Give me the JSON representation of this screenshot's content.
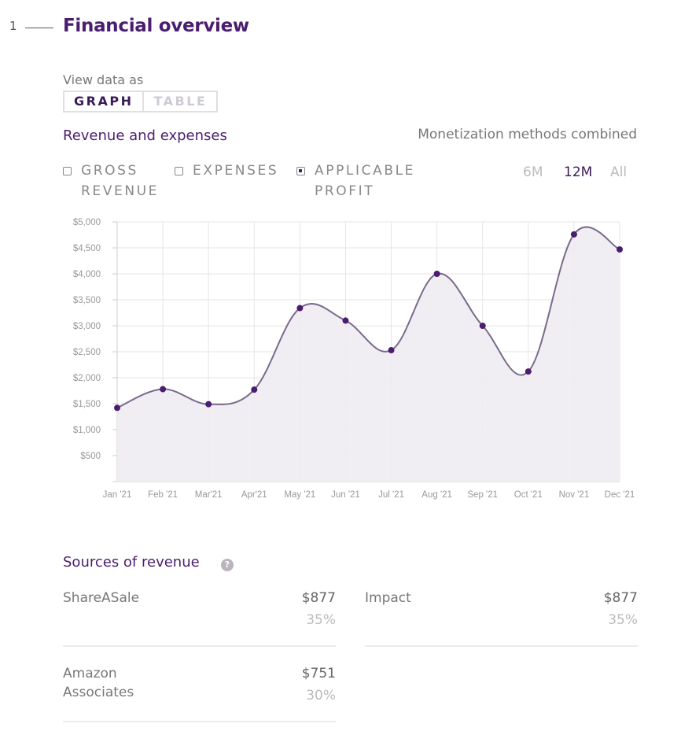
{
  "section": {
    "number": "1",
    "title": "Financial overview"
  },
  "view": {
    "label": "View data as",
    "options": [
      "GRAPH",
      "TABLE"
    ],
    "selected": "GRAPH"
  },
  "chart_header": {
    "title": "Revenue and expenses",
    "meta": "Monetization methods combined"
  },
  "legend": [
    {
      "label": "GROSS REVENUE",
      "checked": false
    },
    {
      "label": "EXPENSES",
      "checked": false
    },
    {
      "label": "APPLICABLE PROFIT",
      "checked": true
    }
  ],
  "ranges": [
    {
      "label": "6M",
      "active": false
    },
    {
      "label": "12M",
      "active": true
    },
    {
      "label": "All",
      "active": false
    }
  ],
  "colors": {
    "accent": "#4a1d6e",
    "line": "#7a6a8c",
    "fill": "#eeebf1",
    "grid": "#e6e6e6"
  },
  "chart_data": {
    "type": "area",
    "categories": [
      "Jan '21",
      "Feb '21",
      "Mar'21",
      "Apr'21",
      "May '21",
      "Jun '21",
      "Jul '21",
      "Aug '21",
      "Sep '21",
      "Oct '21",
      "Nov '21",
      "Dec '21"
    ],
    "series": [
      {
        "name": "APPLICABLE PROFIT",
        "values": [
          1420,
          1780,
          1490,
          1770,
          3340,
          3100,
          2530,
          4000,
          3000,
          2120,
          4760,
          4470
        ]
      }
    ],
    "yticks": [
      500,
      1000,
      1500,
      2000,
      2500,
      3000,
      3500,
      4000,
      4500,
      5000
    ],
    "ytick_labels": [
      "$500",
      "$1,000",
      "$1,500",
      "$2,000",
      "$2,500",
      "$3,000",
      "$3,500",
      "$4,000",
      "$4,500",
      "$5,000"
    ],
    "ylim": [
      0,
      5000
    ],
    "grid": true,
    "xlabel": "",
    "ylabel": ""
  },
  "sources": {
    "title": "Sources of revenue",
    "items": [
      {
        "name": "ShareASale",
        "amount": "$877",
        "percent": "35%"
      },
      {
        "name": "Impact",
        "amount": "$877",
        "percent": "35%"
      },
      {
        "name": "Amazon Associates",
        "amount": "$751",
        "percent": "30%"
      }
    ]
  }
}
